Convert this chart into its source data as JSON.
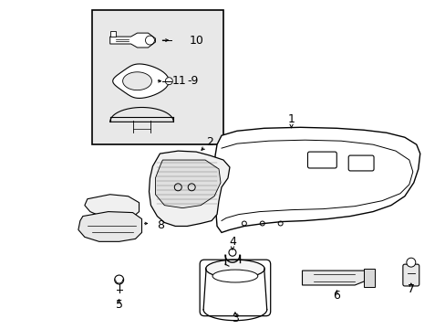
{
  "background_color": "#ffffff",
  "line_color": "#000000",
  "text_color": "#000000",
  "inset_fill": "#e8e8e8",
  "fig_width": 4.89,
  "fig_height": 3.6,
  "dpi": 100
}
